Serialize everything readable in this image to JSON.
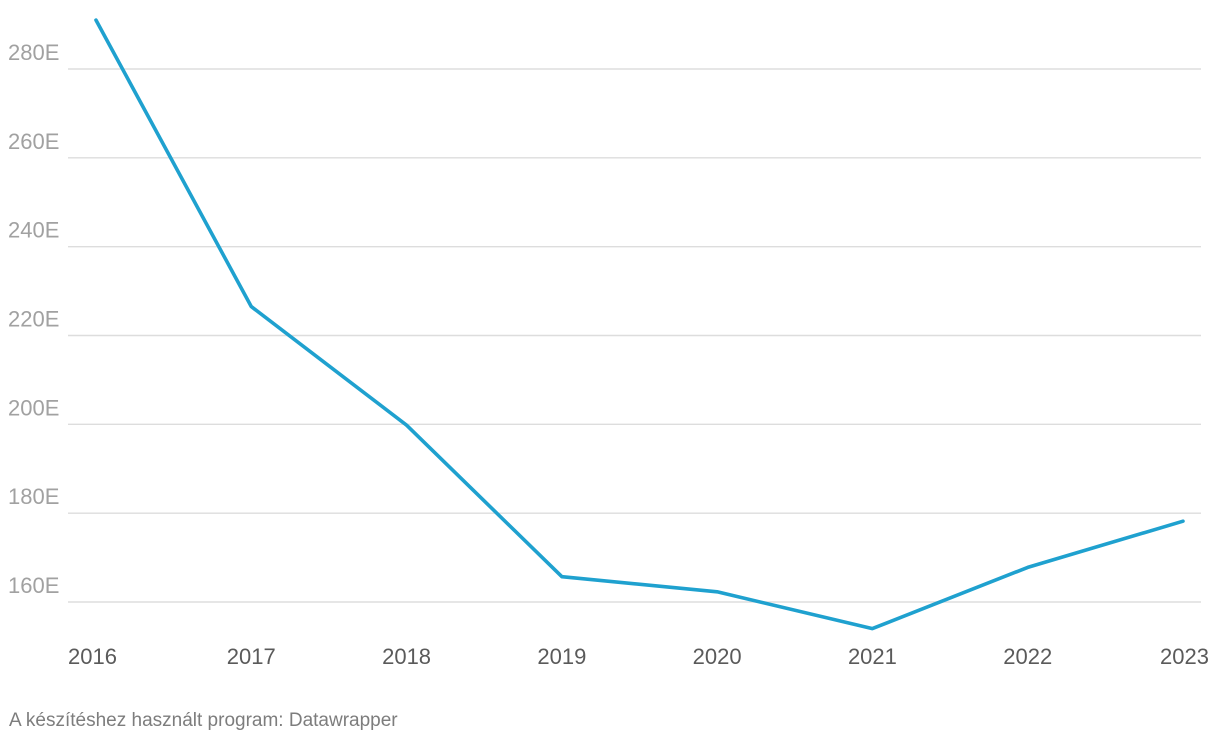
{
  "chart_data": {
    "type": "line",
    "title": "",
    "xlabel": "",
    "ylabel": "",
    "categories": [
      "2016",
      "2017",
      "2018",
      "2019",
      "2020",
      "2021",
      "2022",
      "2023"
    ],
    "series": [
      {
        "name": "",
        "color": "#1fa1cf",
        "values": [
          291000,
          226500,
          199800,
          165700,
          162300,
          154000,
          167800,
          178200
        ]
      }
    ],
    "y_ticks": [
      160000,
      180000,
      200000,
      220000,
      240000,
      260000,
      280000
    ],
    "y_tick_labels": [
      "160E",
      "180E",
      "200E",
      "220E",
      "240E",
      "260E",
      "280E"
    ],
    "ylim": [
      148000,
      293000
    ],
    "grid": true
  },
  "footer": {
    "credit": "A készítéshez használt program: Datawrapper"
  }
}
